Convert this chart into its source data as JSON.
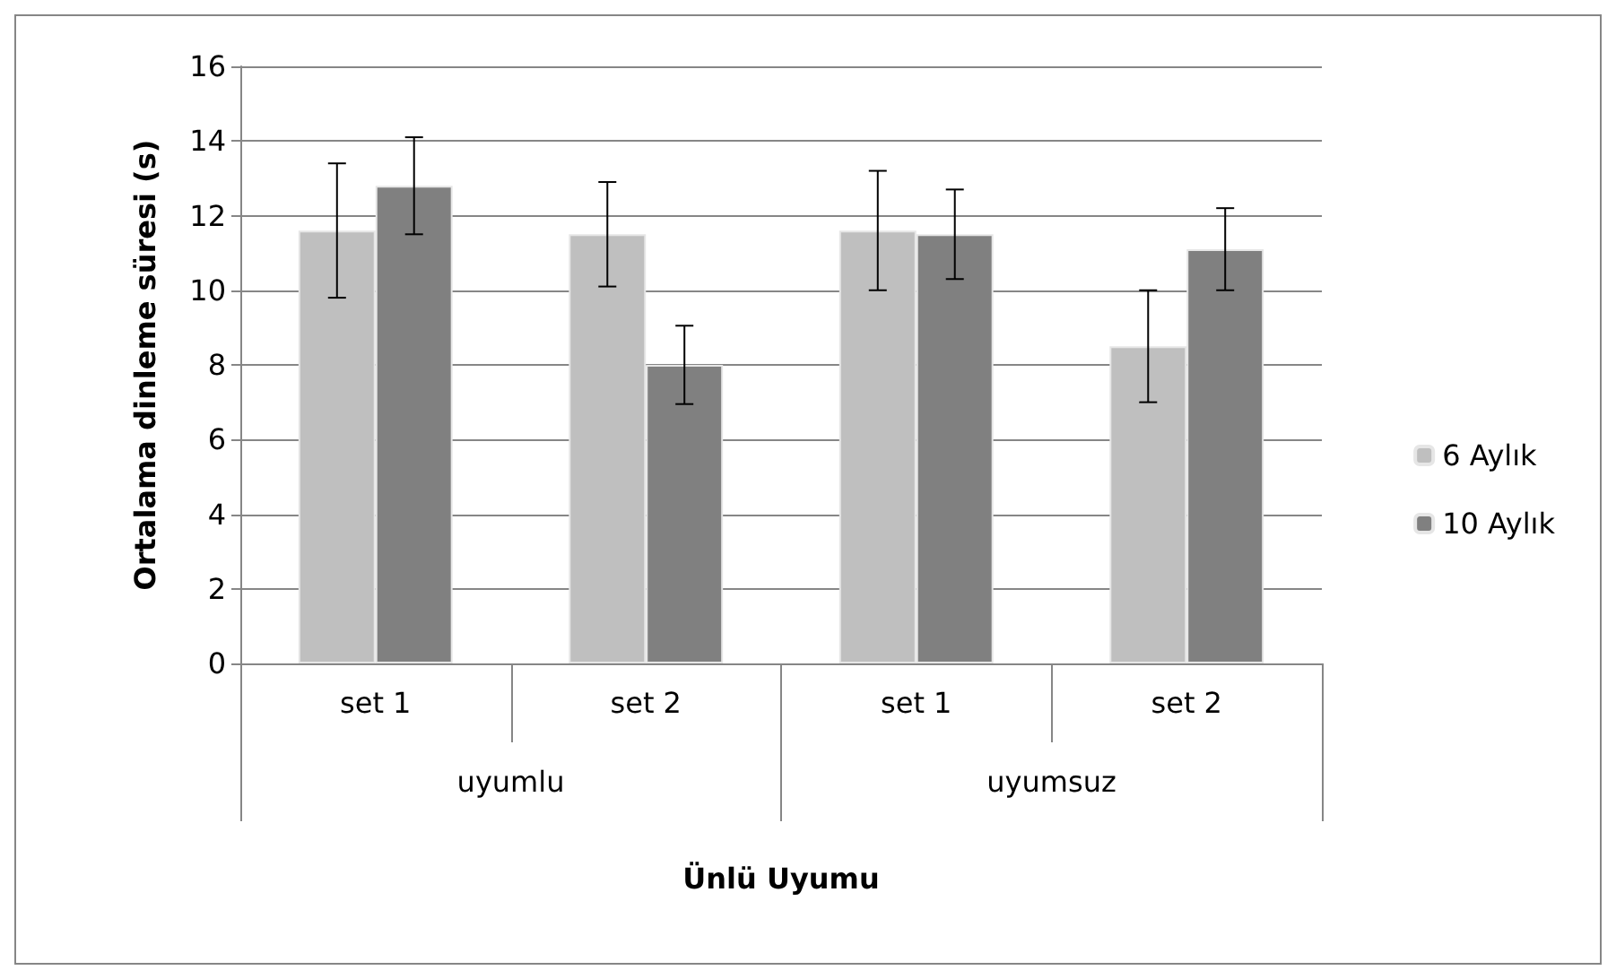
{
  "chart_data": {
    "type": "bar",
    "ylabel": "Ortalama dinleme süresi (s)",
    "xlabel": "Ünlü Uyumu",
    "categories": [
      "set 1",
      "set 2",
      "set 1",
      "set 2"
    ],
    "annotations": [
      "uyumlu",
      "uyumsuz"
    ],
    "series": [
      {
        "name": "6 Aylık",
        "color": "#bfbfbf",
        "values": [
          11.6,
          11.5,
          11.6,
          8.5
        ],
        "errors": [
          1.8,
          1.4,
          1.6,
          1.5
        ]
      },
      {
        "name": "10 Aylık",
        "color": "#808080",
        "values": [
          12.8,
          8.0,
          11.5,
          11.1
        ],
        "errors": [
          1.3,
          1.05,
          1.2,
          1.1
        ]
      }
    ],
    "ylim": [
      0,
      16
    ],
    "yticks": [
      0,
      2,
      4,
      6,
      8,
      10,
      12,
      14,
      16
    ],
    "grid": "y",
    "legend": "right"
  }
}
